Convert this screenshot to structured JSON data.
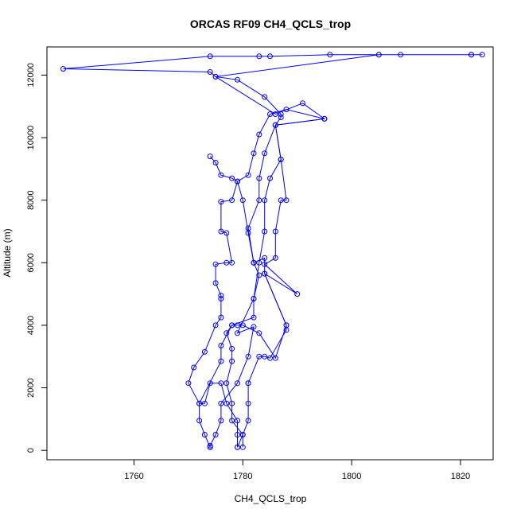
{
  "chart_data": {
    "type": "line",
    "title": "ORCAS RF09 CH4_QCLS_trop",
    "xlabel": "CH4_QCLS_trop",
    "ylabel": "Altitude (m)",
    "xlim": [
      1744,
      1826
    ],
    "ylim": [
      -300,
      12900
    ],
    "x_ticks": [
      1760,
      1780,
      1800,
      1820
    ],
    "y_ticks": [
      0,
      2000,
      4000,
      6000,
      8000,
      10000,
      12000
    ],
    "x_tick_labels": [
      "1760",
      "1780",
      "1800",
      "1820"
    ],
    "y_tick_labels": [
      "0",
      "2000",
      "4000",
      "6000",
      "8000",
      "10000",
      "12000"
    ],
    "grid": false,
    "marker": "open-circle",
    "color": "#0000ff",
    "series": [
      {
        "points": [
          [
            1779,
            100
          ],
          [
            1780,
            500
          ],
          [
            1778,
            950
          ],
          [
            1778,
            1500
          ],
          [
            1777,
            2150
          ],
          [
            1778,
            2850
          ],
          [
            1778,
            3250
          ],
          [
            1777,
            3750
          ],
          [
            1778,
            4000
          ],
          [
            1782,
            4250
          ],
          [
            1782,
            4850
          ],
          [
            1783,
            5600
          ],
          [
            1782,
            6000
          ],
          [
            1782,
            6000
          ],
          [
            1781,
            7100
          ],
          [
            1783,
            8000
          ],
          [
            1783,
            8700
          ],
          [
            1784,
            9500
          ],
          [
            1786,
            10400
          ],
          [
            1787,
            10650
          ],
          [
            1787,
            10750
          ],
          [
            1784,
            11300
          ],
          [
            1779,
            11850
          ],
          [
            1775,
            11950
          ],
          [
            1774,
            12100
          ],
          [
            1747,
            12200
          ],
          [
            1774,
            12600
          ],
          [
            1783,
            12600
          ],
          [
            1785,
            12600
          ],
          [
            1796,
            12650
          ],
          [
            1805,
            12650
          ],
          [
            1809,
            12650
          ],
          [
            1822,
            12650
          ],
          [
            1824,
            12650
          ],
          [
            1822,
            12650
          ],
          [
            1805,
            12650
          ],
          [
            1775,
            11950
          ],
          [
            1786,
            10750
          ],
          [
            1791,
            11100
          ],
          [
            1795,
            10600
          ],
          [
            1786,
            10400
          ],
          [
            1787,
            9300
          ],
          [
            1788,
            8000
          ],
          [
            1787,
            8000
          ],
          [
            1786,
            7000
          ],
          [
            1786,
            6150
          ],
          [
            1784,
            5950
          ],
          [
            1790,
            5000
          ],
          [
            1784,
            5650
          ],
          [
            1788,
            4000
          ],
          [
            1788,
            3850
          ],
          [
            1785,
            2950
          ],
          [
            1784,
            3000
          ],
          [
            1783,
            3000
          ],
          [
            1781,
            2150
          ],
          [
            1781,
            2150
          ],
          [
            1781,
            1500
          ],
          [
            1781,
            950
          ],
          [
            1780,
            500
          ],
          [
            1780,
            100
          ]
        ]
      },
      {
        "points": [
          [
            1774,
            100
          ],
          [
            1773,
            500
          ],
          [
            1772,
            950
          ],
          [
            1772,
            1500
          ],
          [
            1770,
            2150
          ],
          [
            1771,
            2650
          ],
          [
            1773,
            3150
          ],
          [
            1775,
            4000
          ],
          [
            1776,
            4250
          ],
          [
            1776,
            4850
          ],
          [
            1776,
            4950
          ],
          [
            1775,
            5350
          ],
          [
            1775,
            5950
          ],
          [
            1777,
            6000
          ],
          [
            1778,
            6000
          ],
          [
            1777,
            6950
          ],
          [
            1776,
            7000
          ],
          [
            1776,
            7950
          ],
          [
            1778,
            8000
          ],
          [
            1779,
            8600
          ],
          [
            1781,
            8800
          ],
          [
            1782,
            9500
          ],
          [
            1783,
            10100
          ],
          [
            1785,
            10750
          ],
          [
            1788,
            10900
          ],
          [
            1795,
            10600
          ],
          [
            1786,
            10400
          ],
          [
            1787,
            9300
          ],
          [
            1785,
            8700
          ],
          [
            1784,
            8000
          ],
          [
            1784,
            7000
          ],
          [
            1783,
            6000
          ],
          [
            1782,
            4850
          ],
          [
            1779,
            3750
          ],
          [
            1782,
            3950
          ],
          [
            1781,
            3000
          ],
          [
            1779,
            2150
          ],
          [
            1776,
            1500
          ],
          [
            1776,
            950
          ],
          [
            1775,
            500
          ],
          [
            1774,
            150
          ],
          [
            1774,
            100
          ]
        ]
      },
      {
        "points": [
          [
            1779,
            100
          ],
          [
            1779,
            500
          ],
          [
            1779,
            950
          ],
          [
            1777,
            1500
          ],
          [
            1776,
            2150
          ],
          [
            1774,
            2150
          ],
          [
            1773,
            1500
          ],
          [
            1772,
            1500
          ],
          [
            1776,
            2850
          ],
          [
            1776,
            3350
          ],
          [
            1778,
            4000
          ],
          [
            1779,
            4000
          ],
          [
            1780,
            4000
          ],
          [
            1783,
            3750
          ],
          [
            1786,
            2950
          ],
          [
            1788,
            4000
          ],
          [
            1784,
            5650
          ],
          [
            1784,
            6150
          ],
          [
            1782,
            6000
          ],
          [
            1781,
            6950
          ],
          [
            1780,
            8000
          ],
          [
            1779,
            8600
          ],
          [
            1778,
            8700
          ],
          [
            1776,
            8800
          ],
          [
            1775,
            9200
          ],
          [
            1774,
            9400
          ]
        ]
      }
    ]
  }
}
